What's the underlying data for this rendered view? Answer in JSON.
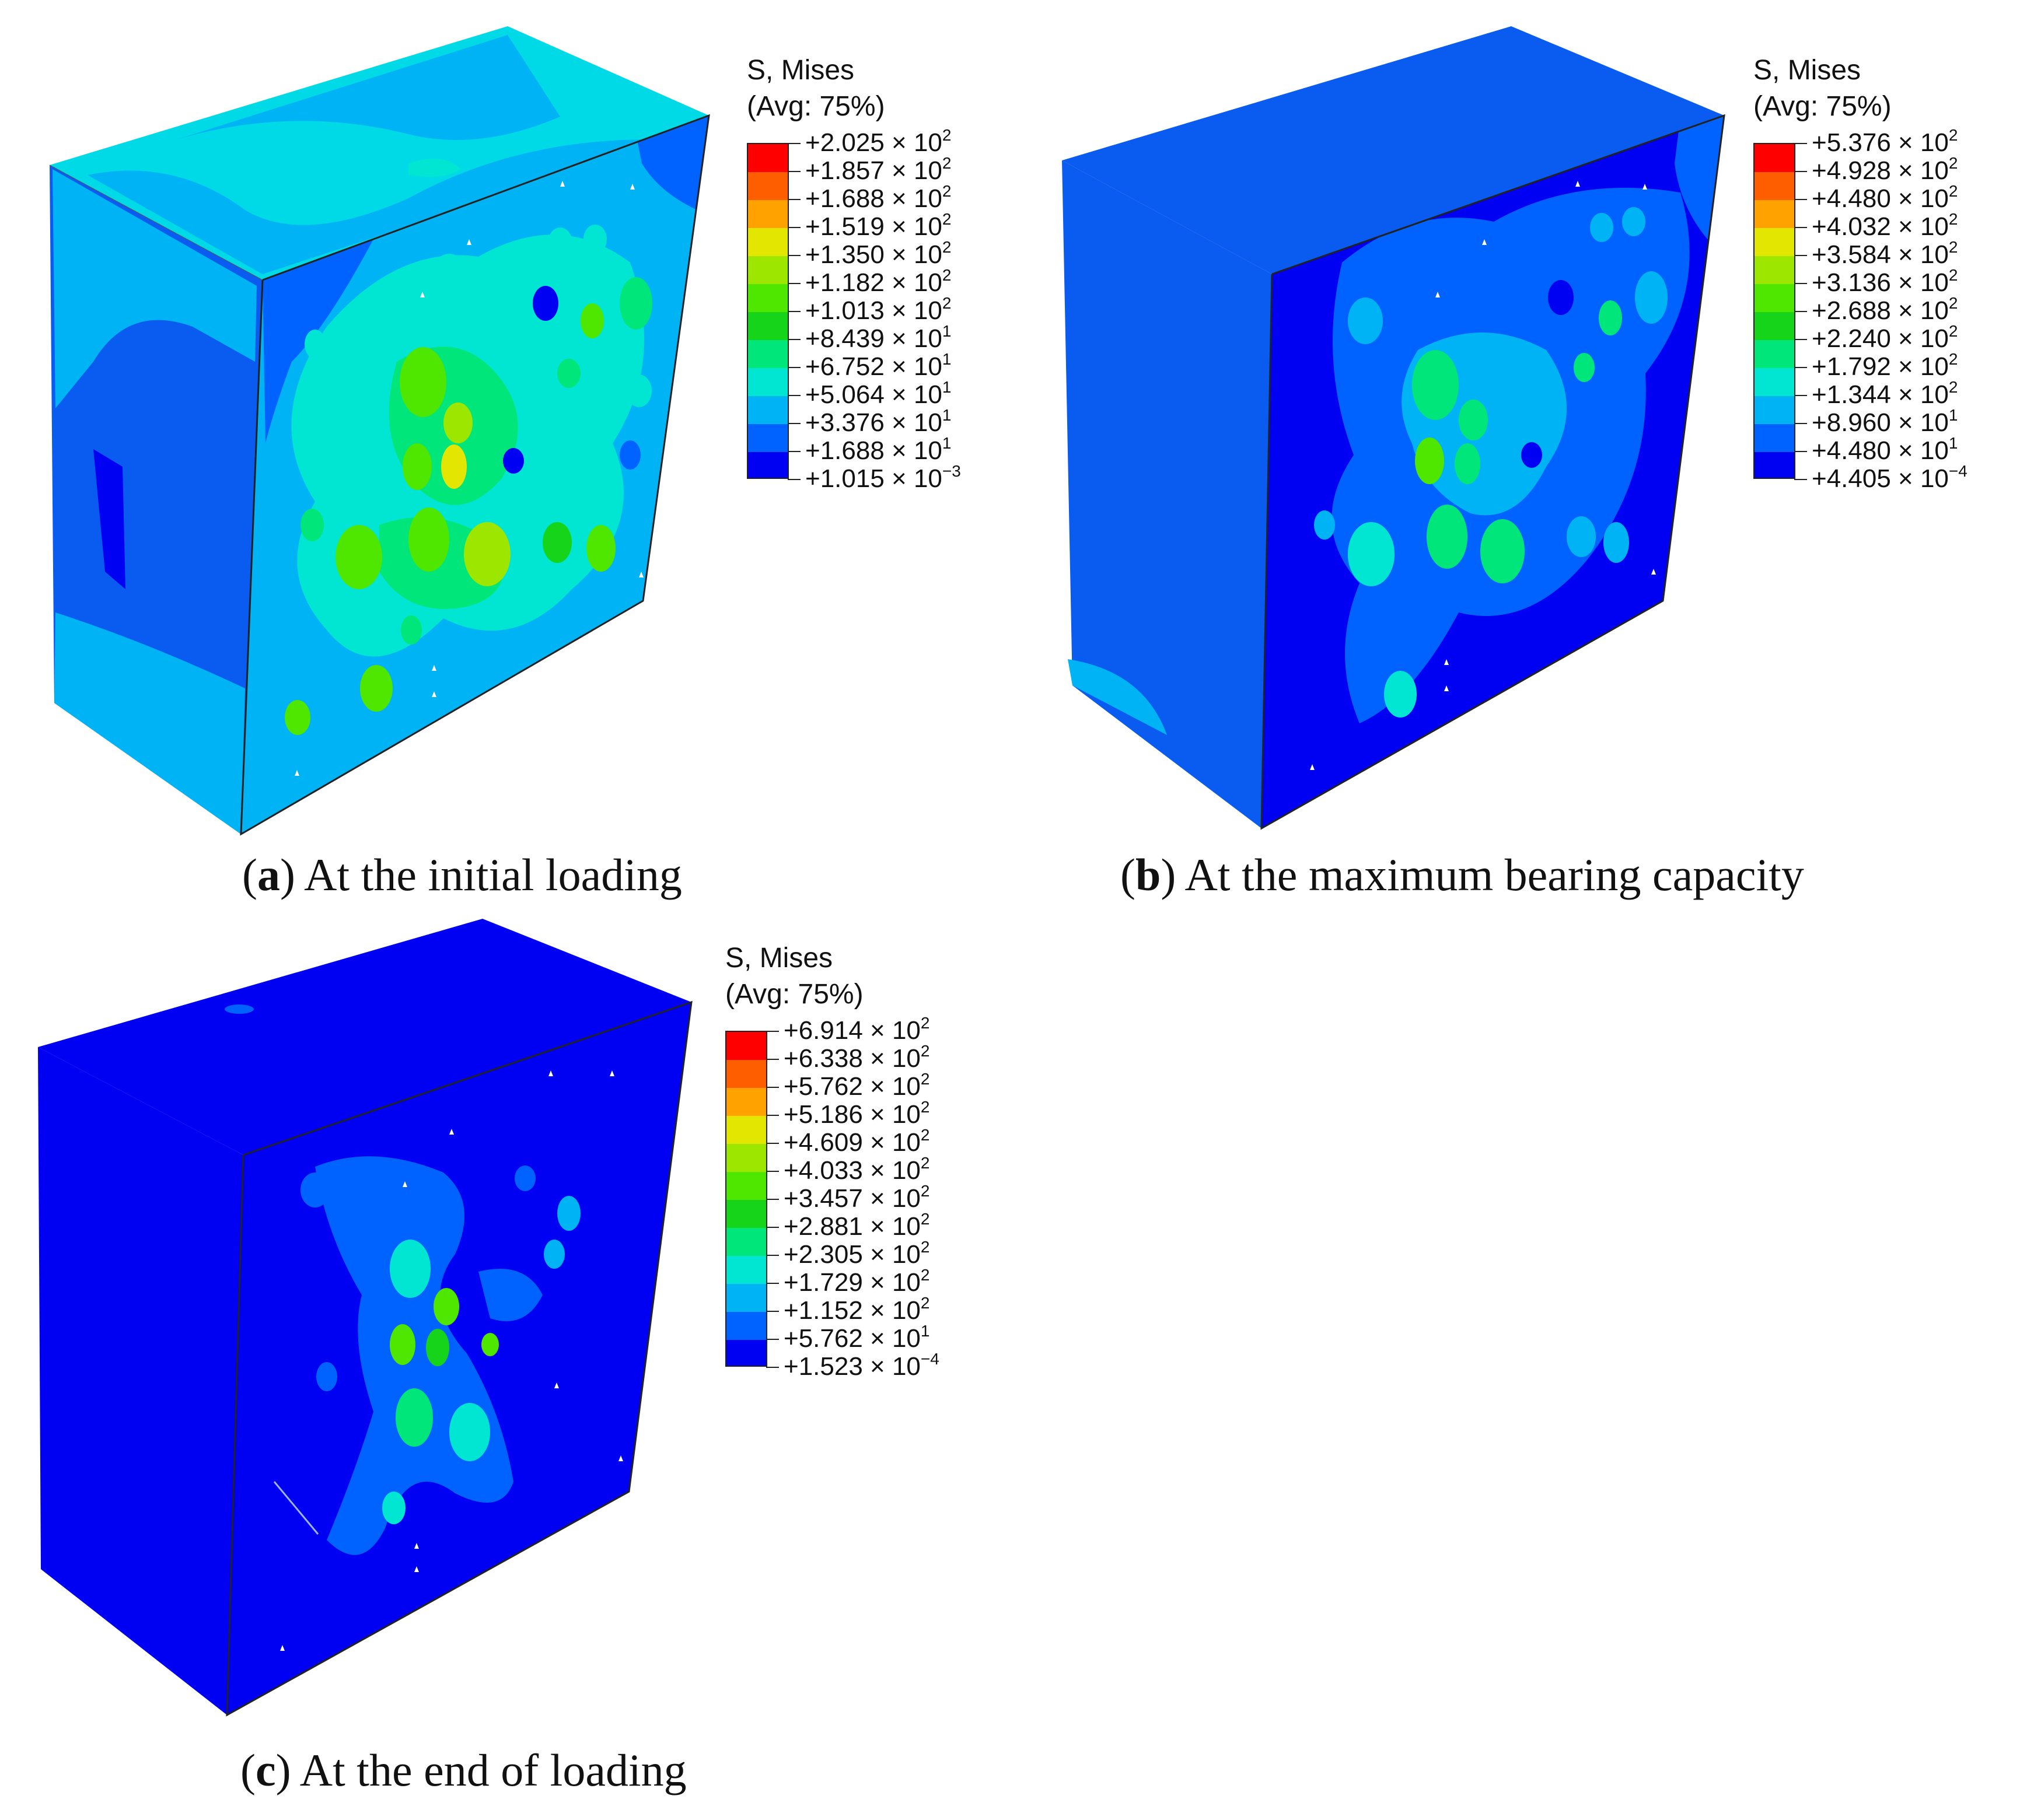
{
  "figure": {
    "panels": [
      {
        "id": "a",
        "caption": {
          "letter": "a",
          "text": "At the initial loading"
        },
        "legend": {
          "title": "S, Mises",
          "subtitle": "(Avg: 75%)",
          "levels": [
            {
              "mantissa": "+2.025",
              "exp": "2"
            },
            {
              "mantissa": "+1.857",
              "exp": "2"
            },
            {
              "mantissa": "+1.688",
              "exp": "2"
            },
            {
              "mantissa": "+1.519",
              "exp": "2"
            },
            {
              "mantissa": "+1.350",
              "exp": "2"
            },
            {
              "mantissa": "+1.182",
              "exp": "2"
            },
            {
              "mantissa": "+1.013",
              "exp": "2"
            },
            {
              "mantissa": "+8.439",
              "exp": "1"
            },
            {
              "mantissa": "+6.752",
              "exp": "1"
            },
            {
              "mantissa": "+5.064",
              "exp": "1"
            },
            {
              "mantissa": "+3.376",
              "exp": "1"
            },
            {
              "mantissa": "+1.688",
              "exp": "1"
            },
            {
              "mantissa": "+1.015",
              "exp": "−3"
            }
          ]
        }
      },
      {
        "id": "b",
        "caption": {
          "letter": "b",
          "text": "At the maximum bearing capacity"
        },
        "legend": {
          "title": "S, Mises",
          "subtitle": "(Avg: 75%)",
          "levels": [
            {
              "mantissa": "+5.376",
              "exp": "2"
            },
            {
              "mantissa": "+4.928",
              "exp": "2"
            },
            {
              "mantissa": "+4.480",
              "exp": "2"
            },
            {
              "mantissa": "+4.032",
              "exp": "2"
            },
            {
              "mantissa": "+3.584",
              "exp": "2"
            },
            {
              "mantissa": "+3.136",
              "exp": "2"
            },
            {
              "mantissa": "+2.688",
              "exp": "2"
            },
            {
              "mantissa": "+2.240",
              "exp": "2"
            },
            {
              "mantissa": "+1.792",
              "exp": "2"
            },
            {
              "mantissa": "+1.344",
              "exp": "2"
            },
            {
              "mantissa": "+8.960",
              "exp": "1"
            },
            {
              "mantissa": "+4.480",
              "exp": "1"
            },
            {
              "mantissa": "+4.405",
              "exp": "−4"
            }
          ]
        }
      },
      {
        "id": "c",
        "caption": {
          "letter": "c",
          "text": "At the end of loading"
        },
        "legend": {
          "title": "S, Mises",
          "subtitle": "(Avg: 75%)",
          "levels": [
            {
              "mantissa": "+6.914",
              "exp": "2"
            },
            {
              "mantissa": "+6.338",
              "exp": "2"
            },
            {
              "mantissa": "+5.762",
              "exp": "2"
            },
            {
              "mantissa": "+5.186",
              "exp": "2"
            },
            {
              "mantissa": "+4.609",
              "exp": "2"
            },
            {
              "mantissa": "+4.033",
              "exp": "2"
            },
            {
              "mantissa": "+3.457",
              "exp": "2"
            },
            {
              "mantissa": "+2.881",
              "exp": "2"
            },
            {
              "mantissa": "+2.305",
              "exp": "2"
            },
            {
              "mantissa": "+1.729",
              "exp": "2"
            },
            {
              "mantissa": "+1.152",
              "exp": "2"
            },
            {
              "mantissa": "+5.762",
              "exp": "1"
            },
            {
              "mantissa": "+1.523",
              "exp": "−4"
            }
          ]
        }
      }
    ],
    "colormap": [
      "#ff0000",
      "#ff5e00",
      "#ffa200",
      "#e3e600",
      "#9ce600",
      "#4fe600",
      "#16d41a",
      "#00e67a",
      "#00e6d2",
      "#00b3f5",
      "#0063ff",
      "#0000f2"
    ]
  }
}
